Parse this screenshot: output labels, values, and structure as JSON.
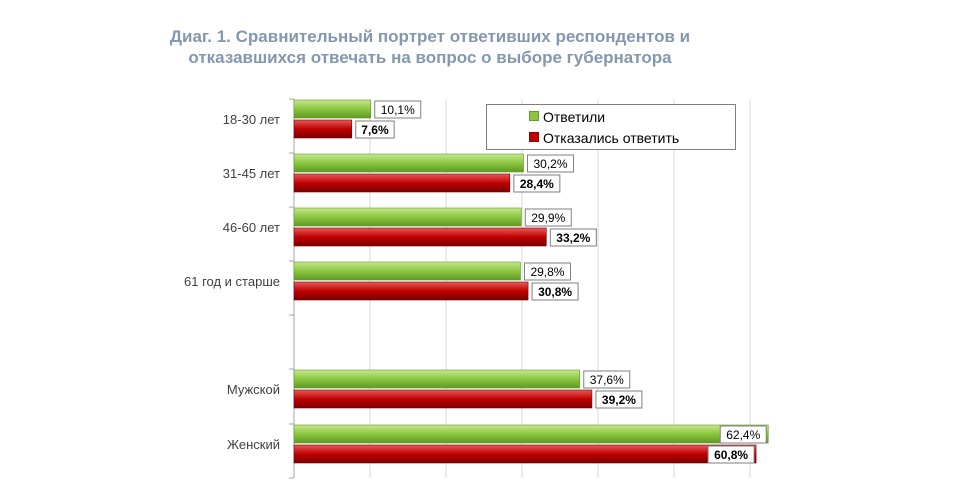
{
  "title_line1": "Диаг. 1. Сравнительный портрет ответивших респондентов и",
  "title_line2": "отказавшихся отвечать на вопрос о выборе губернатора",
  "colors": {
    "answered": "#8cc63f",
    "answered_dark": "#5e9a24",
    "refused": "#c00000",
    "refused_dark": "#7a0000",
    "title": "#8497b0",
    "grid": "#d9d9d9"
  },
  "chart_data": {
    "type": "bar",
    "orientation": "horizontal",
    "categories": [
      "18-30 лет",
      "31-45 лет",
      "46-60 лет",
      "61 год и старше",
      "",
      "Мужской",
      "Женский"
    ],
    "series": [
      {
        "name": "Ответили",
        "values": [
          10.1,
          30.2,
          29.9,
          29.8,
          null,
          37.6,
          62.4
        ],
        "labels": [
          "10,1%",
          "30,2%",
          "29,9%",
          "29,8%",
          "",
          "37,6%",
          "62,4%"
        ]
      },
      {
        "name": "Отказались  ответить",
        "values": [
          7.6,
          28.4,
          33.2,
          30.8,
          null,
          39.2,
          60.8
        ],
        "labels": [
          "7,6%",
          "28,4%",
          "33,2%",
          "30,8%",
          "",
          "39,2%",
          "60,8%"
        ]
      }
    ],
    "xlim": [
      0,
      60
    ],
    "grid": true,
    "legend_position": "top-right"
  }
}
